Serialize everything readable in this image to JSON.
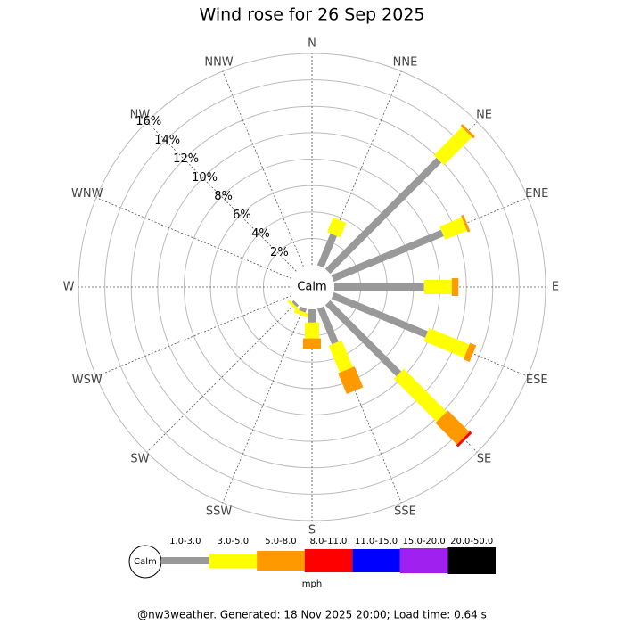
{
  "chart_data": {
    "type": "windrose",
    "title": "Wind rose for 26 Sep 2025",
    "directions": [
      "N",
      "NNE",
      "NE",
      "ENE",
      "E",
      "ESE",
      "SE",
      "SSE",
      "S",
      "SSW",
      "SW",
      "WSW",
      "W",
      "WNW",
      "NW",
      "NNW"
    ],
    "calm_label": "Calm",
    "unit": "mph",
    "ylim": [
      0,
      16
    ],
    "yticks": [
      {
        "value": 2,
        "label": "2%"
      },
      {
        "value": 4,
        "label": "4%"
      },
      {
        "value": 6,
        "label": "6%"
      },
      {
        "value": 8,
        "label": "8%"
      },
      {
        "value": 10,
        "label": "10%"
      },
      {
        "value": 12,
        "label": "12%"
      },
      {
        "value": 14,
        "label": "14%"
      },
      {
        "value": 16,
        "label": "16%"
      }
    ],
    "series": [
      {
        "name": "1.0-3.0",
        "color": "#999999",
        "values": [
          0,
          2.6,
          11.9,
          9.0,
          6.8,
          7.7,
          7.6,
          2.9,
          1.0,
          0.3,
          0.2,
          0,
          0,
          0,
          0,
          0
        ]
      },
      {
        "name": "3.0-5.0",
        "color": "#ffff00",
        "values": [
          0,
          1.2,
          3.0,
          1.8,
          2.1,
          3.3,
          4.6,
          2.2,
          1.2,
          0.3,
          0.2,
          0,
          0,
          0,
          0,
          0
        ]
      },
      {
        "name": "5.0-8.0",
        "color": "#ff9900",
        "values": [
          0,
          0,
          0.2,
          0.2,
          0.5,
          0.5,
          2.3,
          1.7,
          0.8,
          0,
          0,
          0,
          0,
          0,
          0,
          0
        ]
      },
      {
        "name": "8.0-11.0",
        "color": "#ff0000",
        "values": [
          0,
          0,
          0,
          0,
          0,
          0,
          0.2,
          0,
          0,
          0,
          0,
          0,
          0,
          0,
          0,
          0
        ]
      },
      {
        "name": "11.0-15.0",
        "color": "#0000ff",
        "values": [
          0,
          0,
          0,
          0,
          0,
          0,
          0,
          0,
          0,
          0,
          0,
          0,
          0,
          0,
          0,
          0
        ]
      },
      {
        "name": "15.0-20.0",
        "color": "#a020f0",
        "values": [
          0,
          0,
          0,
          0,
          0,
          0,
          0,
          0,
          0,
          0,
          0,
          0,
          0,
          0,
          0,
          0
        ]
      },
      {
        "name": "20.0-50.0",
        "color": "#000000",
        "values": [
          0,
          0,
          0,
          0,
          0,
          0,
          0,
          0,
          0,
          0,
          0,
          0,
          0,
          0,
          0,
          0
        ]
      }
    ]
  },
  "footer": "@nw3weather. Generated: 18 Nov 2025 20:00; Load time: 0.64 s"
}
